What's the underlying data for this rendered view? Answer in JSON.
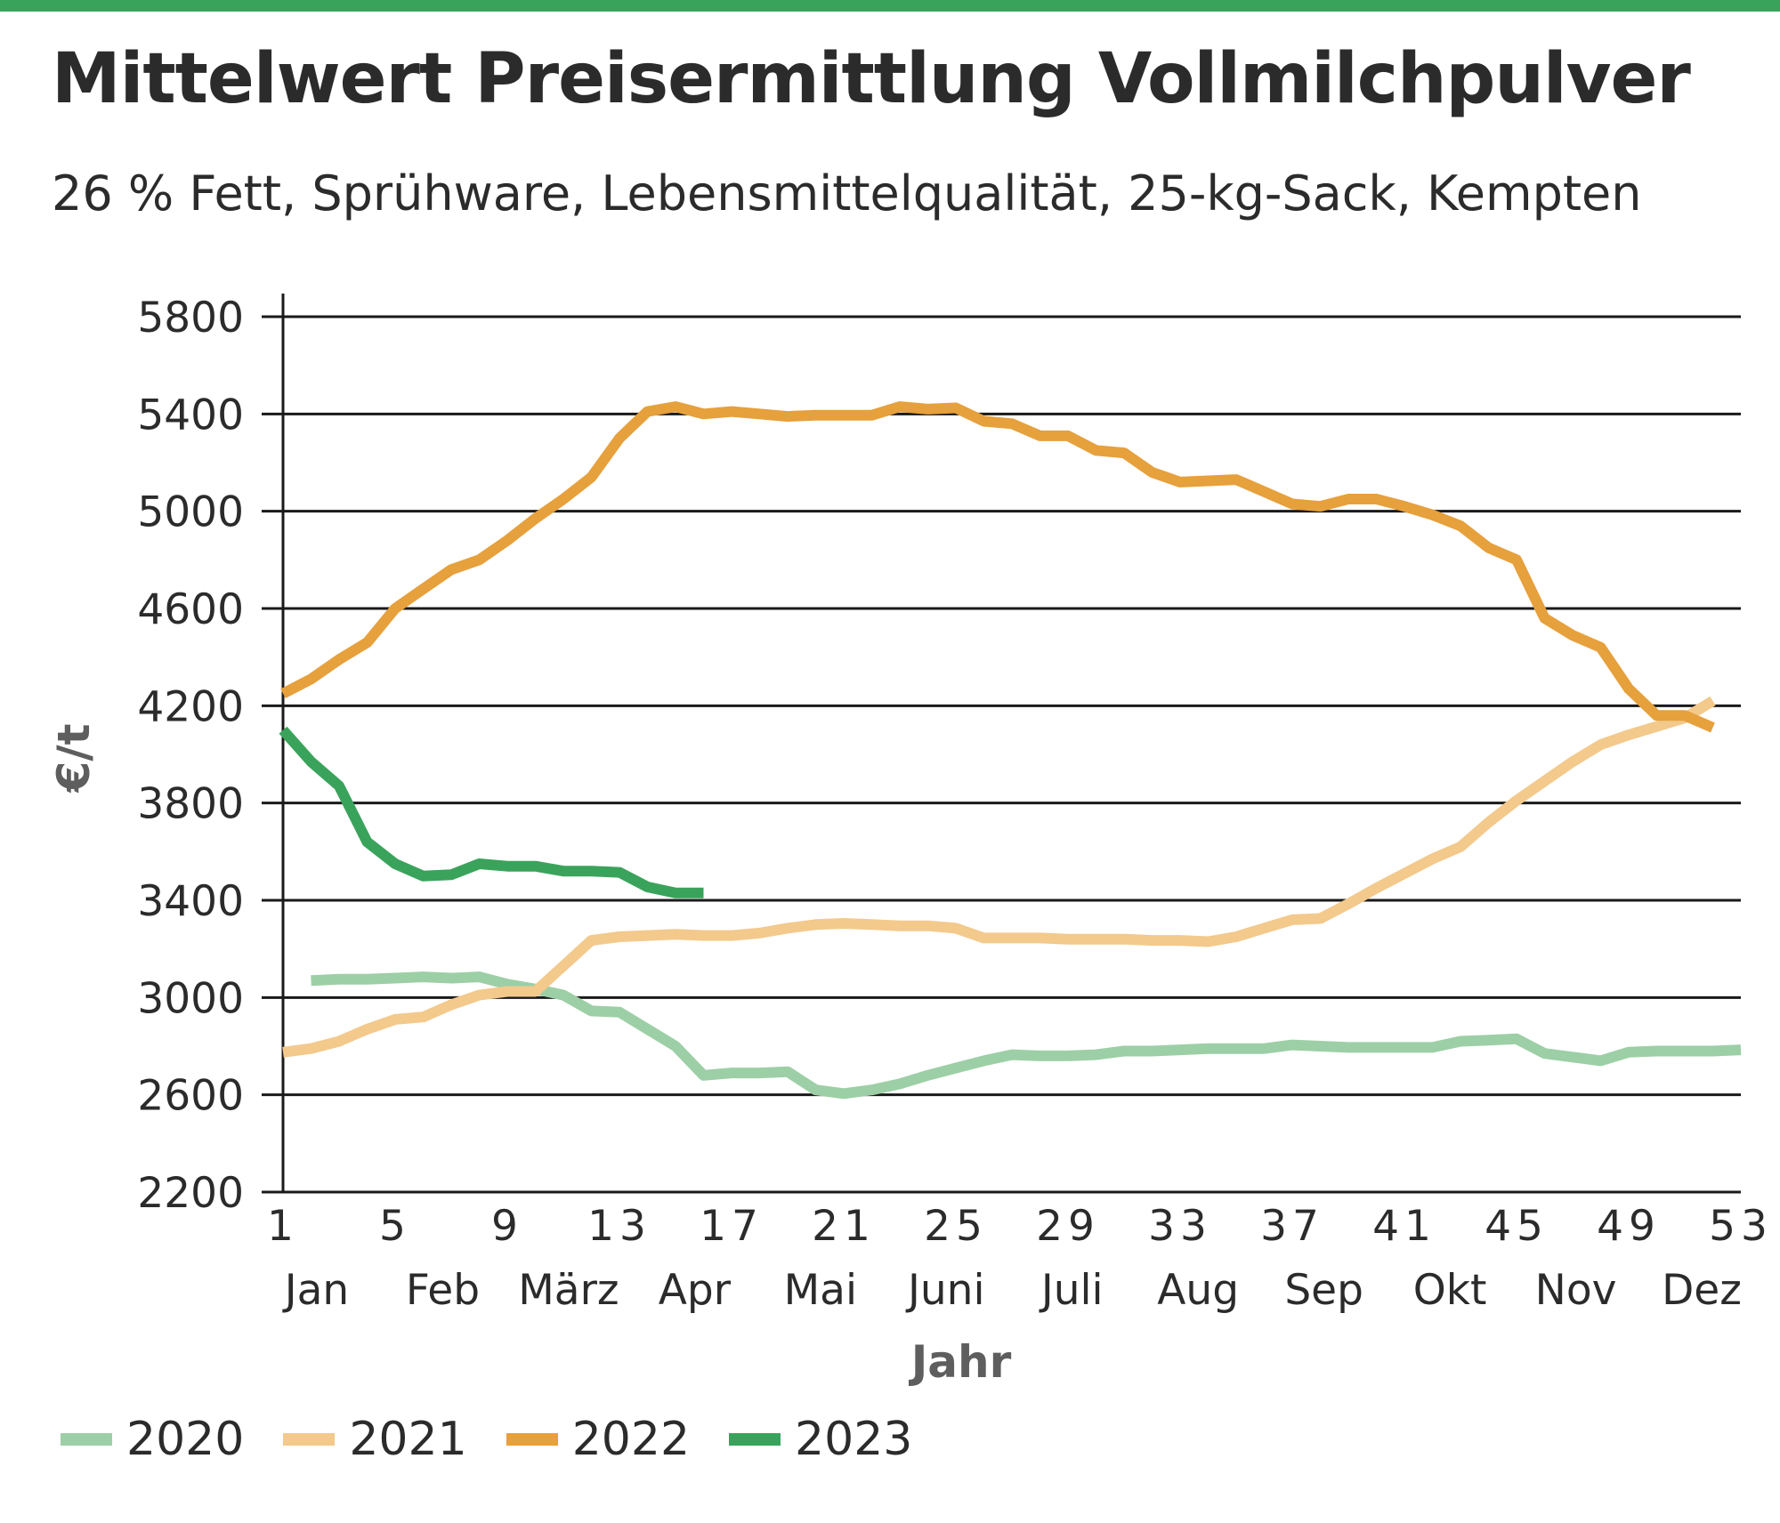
{
  "header": {
    "title": "Mittelwert Preisermittlung Vollmilchpulver",
    "subtitle": "26 % Fett, Sprühware, Lebensmittelqualität, 25-kg-Sack, Kempten",
    "accent_color": "#3aa35b"
  },
  "chart_data": {
    "type": "line",
    "title": "Mittelwert Preisermittlung Vollmilchpulver",
    "subtitle": "26 % Fett, Sprühware, Lebensmittelqualität, 25-kg-Sack, Kempten",
    "xlabel": "Jahr",
    "ylabel": "€/t",
    "xlim": [
      1,
      53
    ],
    "ylim": [
      2200,
      5800
    ],
    "x_ticks": [
      "1",
      "5",
      "9",
      "13",
      "17",
      "21",
      "25",
      "29",
      "33",
      "37",
      "41",
      "45",
      "49",
      "53"
    ],
    "y_ticks": [
      "5800",
      "5400",
      "5000",
      "4600",
      "4200",
      "3800",
      "3400",
      "3000",
      "2600",
      "2200"
    ],
    "month_labels": [
      "Jan",
      "Feb",
      "März",
      "Apr",
      "Mai",
      "Juni",
      "Juli",
      "Aug",
      "Sep",
      "Okt",
      "Nov",
      "Dez"
    ],
    "grid": true,
    "legend_position": "bottom-left",
    "series": [
      {
        "name": "2020",
        "color": "#9dcfa6",
        "x": [
          2,
          3,
          4,
          5,
          6,
          7,
          8,
          9,
          10,
          11,
          12,
          13,
          14,
          15,
          16,
          17,
          18,
          19,
          20,
          21,
          22,
          23,
          24,
          25,
          26,
          27,
          28,
          29,
          30,
          31,
          32,
          33,
          34,
          35,
          36,
          37,
          38,
          39,
          40,
          41,
          42,
          43,
          44,
          45,
          46,
          47,
          48,
          49,
          50,
          51,
          52,
          53
        ],
        "values": [
          3070,
          3075,
          3075,
          3080,
          3085,
          3080,
          3085,
          3055,
          3035,
          3010,
          2945,
          2940,
          2870,
          2800,
          2680,
          2690,
          2690,
          2695,
          2620,
          2605,
          2620,
          2645,
          2680,
          2710,
          2740,
          2765,
          2760,
          2760,
          2765,
          2780,
          2780,
          2785,
          2790,
          2790,
          2790,
          2805,
          2800,
          2795,
          2795,
          2795,
          2795,
          2820,
          2825,
          2830,
          2770,
          2755,
          2740,
          2775,
          2780,
          2780,
          2780,
          2785
        ]
      },
      {
        "name": "2021",
        "color": "#f3c98c",
        "x": [
          1,
          2,
          3,
          4,
          5,
          6,
          7,
          8,
          9,
          10,
          11,
          12,
          13,
          14,
          15,
          16,
          17,
          18,
          19,
          20,
          21,
          22,
          23,
          24,
          25,
          26,
          27,
          28,
          29,
          30,
          31,
          32,
          33,
          34,
          35,
          36,
          37,
          38,
          39,
          40,
          41,
          42,
          43,
          44,
          45,
          46,
          47,
          48,
          49,
          50,
          51,
          52
        ],
        "values": [
          2775,
          2790,
          2820,
          2870,
          2910,
          2920,
          2970,
          3010,
          3025,
          3025,
          3130,
          3235,
          3250,
          3255,
          3260,
          3255,
          3255,
          3265,
          3285,
          3300,
          3305,
          3300,
          3295,
          3295,
          3285,
          3245,
          3245,
          3245,
          3240,
          3240,
          3240,
          3235,
          3235,
          3230,
          3250,
          3285,
          3320,
          3325,
          3385,
          3450,
          3510,
          3570,
          3620,
          3720,
          3810,
          3890,
          3970,
          4040,
          4080,
          4115,
          4150,
          4220
        ]
      },
      {
        "name": "2022",
        "color": "#e6a03c",
        "x": [
          1,
          2,
          3,
          4,
          5,
          6,
          7,
          8,
          9,
          10,
          11,
          12,
          13,
          14,
          15,
          16,
          17,
          18,
          19,
          20,
          21,
          22,
          23,
          24,
          25,
          26,
          27,
          28,
          29,
          30,
          31,
          32,
          33,
          34,
          35,
          36,
          37,
          38,
          39,
          40,
          41,
          42,
          43,
          44,
          45,
          46,
          47,
          48,
          49,
          50,
          51,
          52
        ],
        "values": [
          4250,
          4310,
          4390,
          4460,
          4600,
          4680,
          4760,
          4800,
          4880,
          4970,
          5050,
          5140,
          5300,
          5410,
          5430,
          5400,
          5410,
          5400,
          5390,
          5395,
          5395,
          5395,
          5430,
          5420,
          5425,
          5370,
          5360,
          5310,
          5310,
          5250,
          5240,
          5160,
          5120,
          5125,
          5130,
          5080,
          5030,
          5020,
          5050,
          5050,
          5020,
          4985,
          4940,
          4850,
          4800,
          4560,
          4490,
          4440,
          4270,
          4160,
          4160,
          4110
        ]
      },
      {
        "name": "2023",
        "color": "#3aa35b",
        "x": [
          1,
          2,
          3,
          4,
          5,
          6,
          7,
          8,
          9,
          10,
          11,
          12,
          13,
          14,
          15,
          16
        ],
        "values": [
          4100,
          3970,
          3870,
          3640,
          3550,
          3500,
          3505,
          3550,
          3540,
          3540,
          3520,
          3520,
          3515,
          3455,
          3430,
          3430
        ]
      }
    ]
  }
}
